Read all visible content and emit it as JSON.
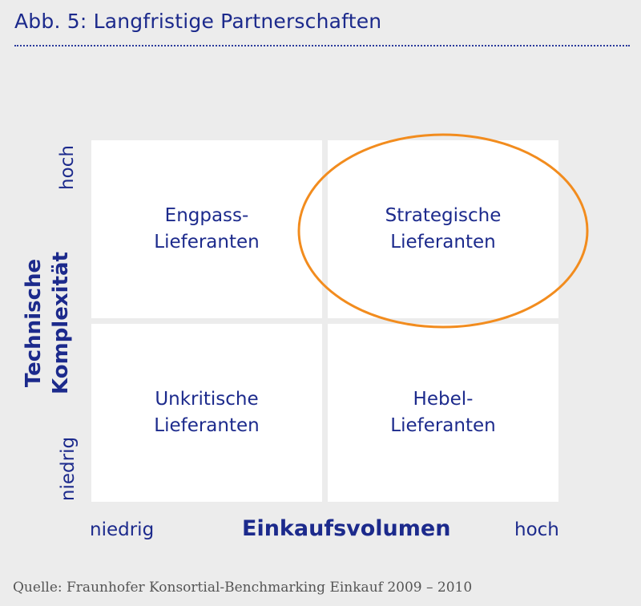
{
  "title": "Abb. 5: Langfristige Partnerschaften",
  "quadrants": {
    "top_left": {
      "line1": "Engpass-",
      "line2": "Lieferanten"
    },
    "top_right": {
      "line1": "Strategische",
      "line2": "Lieferanten"
    },
    "bottom_left": {
      "line1": "Unkritische",
      "line2": "Lieferanten"
    },
    "bottom_right": {
      "line1": "Hebel-",
      "line2": "Lieferanten"
    }
  },
  "y_axis": {
    "title_line1": "Technische",
    "title_line2": "Komplexität",
    "high": "hoch",
    "low": "niedrig"
  },
  "x_axis": {
    "title": "Einkaufsvolumen",
    "low": "niedrig",
    "high": "hoch"
  },
  "source": "Quelle: Fraunhofer Konsortial-Benchmarking Einkauf 2009 – 2010",
  "colors": {
    "text": "#1c2a8c",
    "highlight": "#f28c1e",
    "background": "#ececec",
    "quadrant": "#ffffff"
  }
}
